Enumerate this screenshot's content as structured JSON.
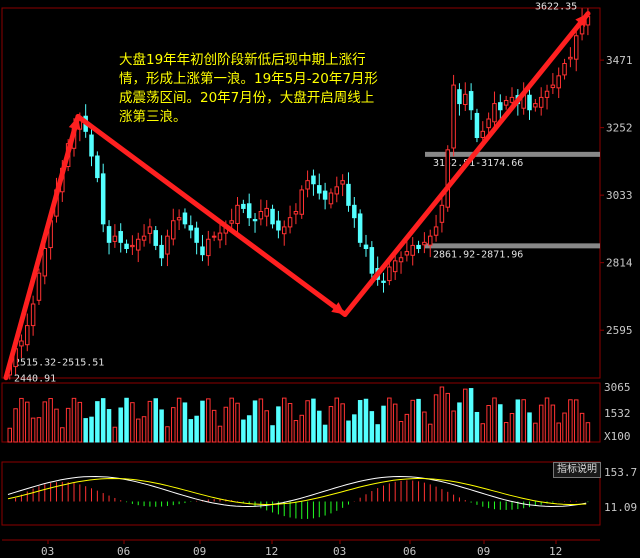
{
  "annotation": "大盘19年年初创阶段新低后现中期上涨行情，形成上涨第一浪。19年5月-20年7月形成震荡区间。20年7月份，大盘开启周线上涨第三浪。",
  "indicator_button": "指标说明",
  "price_panel": {
    "y_ticks": [
      "3471",
      "3252",
      "3033",
      "2814",
      "2595"
    ],
    "high_label": "3622.35",
    "low_label": "2440.91",
    "zone_labels": [
      "3152.81-3174.66",
      "2861.92-2871.96",
      "2515.32-2515.51"
    ]
  },
  "volume_panel": {
    "y_ticks": [
      "3065",
      "1532",
      "X100"
    ]
  },
  "macd_panel": {
    "y_ticks": [
      "153.7",
      "11.09"
    ]
  },
  "x_ticks": [
    "03",
    "06",
    "09",
    "12",
    "03",
    "06",
    "09",
    "12"
  ],
  "colors": {
    "up": "#ff3232",
    "down": "#54ffff",
    "arrow": "#ff2020",
    "annotation": "#ffff00",
    "zone": "#a0a0a0"
  },
  "chart_data": {
    "type": "candlestick",
    "period": "weekly",
    "y_range": [
      2440,
      3640
    ],
    "y_ticks": [
      3471,
      3252,
      3033,
      2814,
      2595
    ],
    "high": 3622.35,
    "low": 2440.91,
    "zones": [
      {
        "label": "3152.81-3174.66",
        "low": 3152.81,
        "high": 3174.66
      },
      {
        "label": "2861.92-2871.96",
        "low": 2861.92,
        "high": 2871.96
      },
      {
        "label": "2515.32-2515.51",
        "low": 2515.32,
        "high": 2515.51
      }
    ],
    "waves": [
      {
        "from": 2441,
        "to": 3288
      },
      {
        "from": 3288,
        "to": 2646
      },
      {
        "from": 2646,
        "to": 3622
      }
    ],
    "closes": [
      2480,
      2535,
      2560,
      2610,
      2680,
      2780,
      2860,
      2950,
      3050,
      3120,
      3200,
      3250,
      3280,
      3240,
      3160,
      3090,
      2940,
      2880,
      2900,
      2880,
      2860,
      2870,
      2890,
      2900,
      2930,
      2870,
      2830,
      2900,
      2950,
      2960,
      2940,
      2920,
      2880,
      2840,
      2890,
      2900,
      2910,
      2930,
      2950,
      3000,
      2990,
      2960,
      2950,
      2980,
      2990,
      2940,
      2920,
      2930,
      2960,
      2980,
      3050,
      3080,
      3070,
      3040,
      3020,
      3040,
      3060,
      3080,
      3000,
      2960,
      2880,
      2860,
      2780,
      2760,
      2750,
      2800,
      2820,
      2830,
      2850,
      2870,
      2860,
      2880,
      2900,
      2930,
      3000,
      3180,
      3390,
      3330,
      3360,
      3310,
      3220,
      3240,
      3280,
      3330,
      3310,
      3340,
      3350,
      3330,
      3360,
      3310,
      3330,
      3350,
      3370,
      3390,
      3420,
      3460,
      3480,
      3550,
      3600,
      3612
    ],
    "volume": {
      "y_ticks": [
        3065,
        1532
      ],
      "unit": "X100"
    },
    "macd": {
      "y_ticks": [
        153.7,
        11.09
      ]
    }
  }
}
